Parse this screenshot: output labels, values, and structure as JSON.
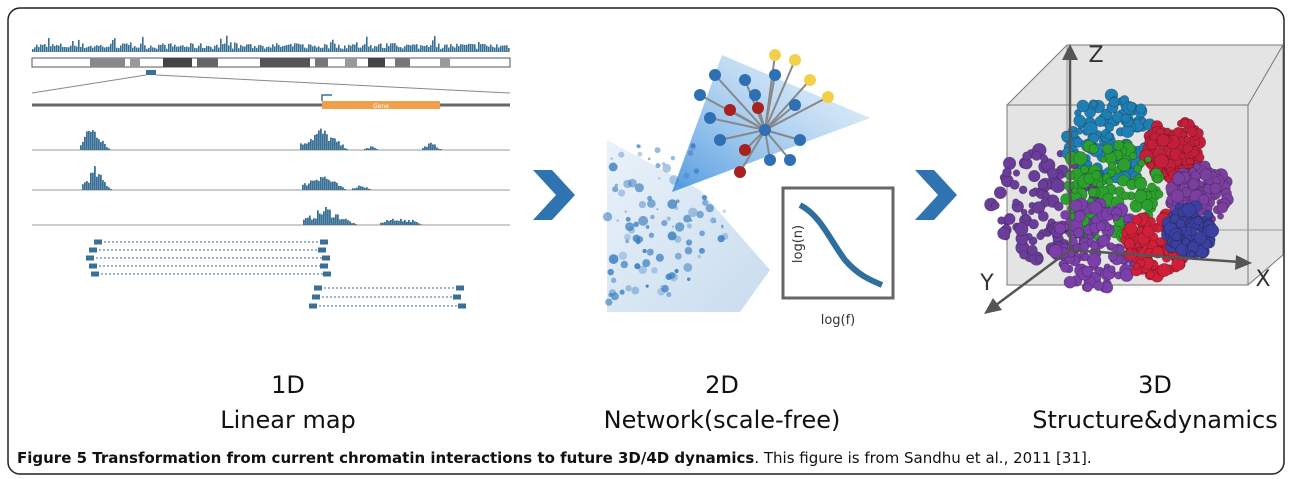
{
  "panels": [
    {
      "label": "1D",
      "title": "Linear map",
      "gene_label": "Gene"
    },
    {
      "label": "2D",
      "title": "Network(scale-free)",
      "y_axis": "log(n)",
      "x_axis": "log(f)"
    },
    {
      "label": "3D",
      "title": "Structure&dynamics",
      "axes": [
        "Z",
        "Y",
        "X"
      ]
    }
  ],
  "caption": {
    "title": "Figure 5 Transformation from current chromatin interactions to future 3D/4D dynamics",
    "text": ". This figure is from Sandhu et al., 2011 [31]."
  }
}
